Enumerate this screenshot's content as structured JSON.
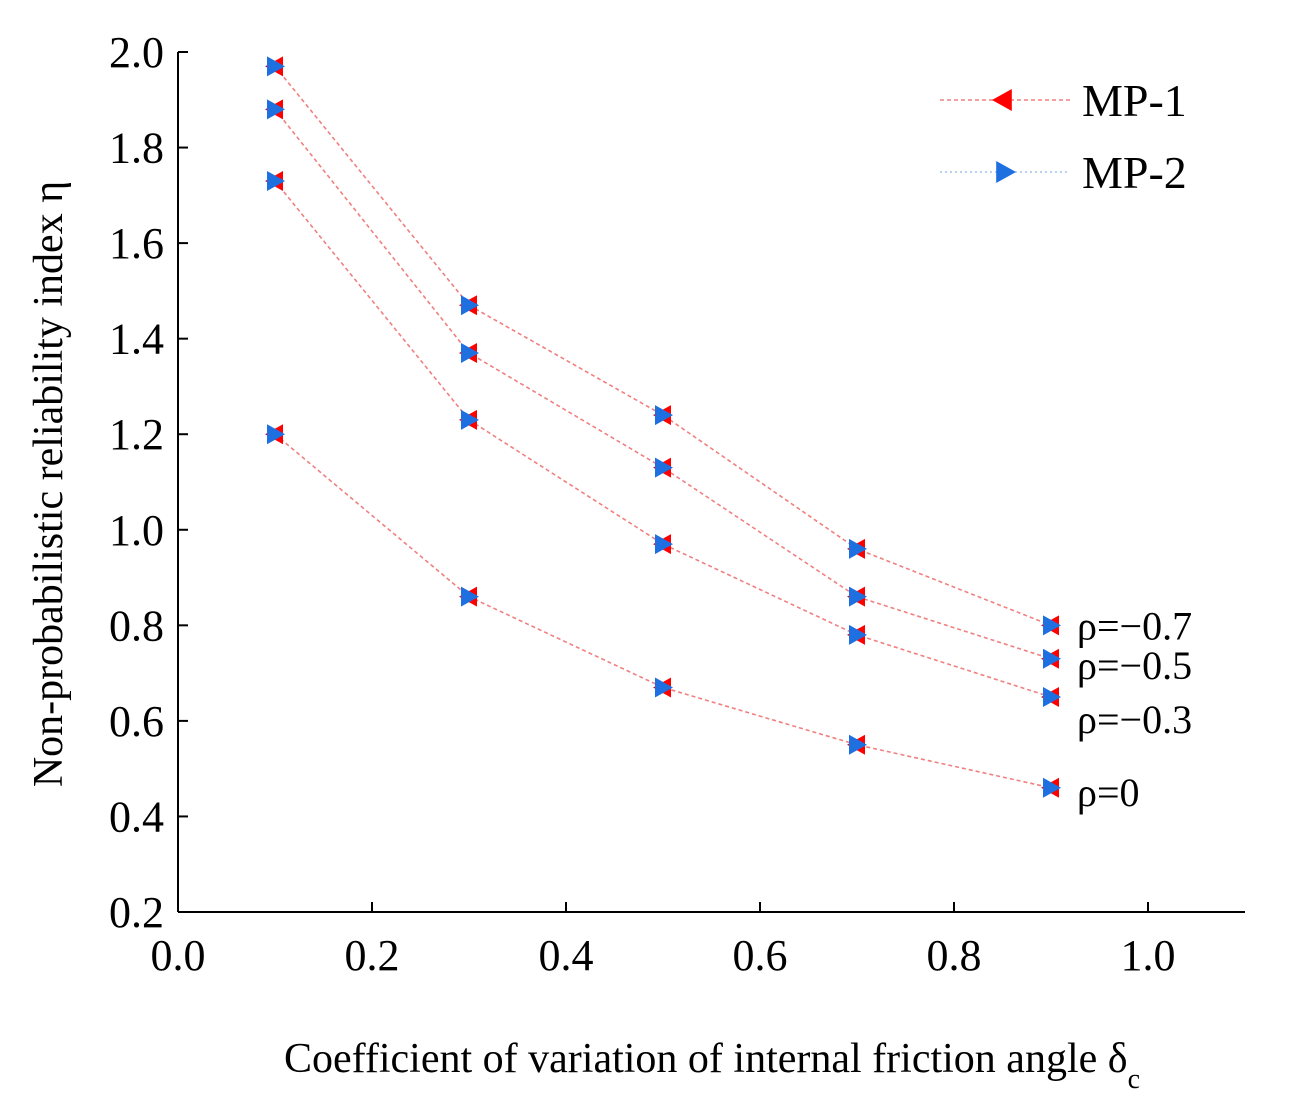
{
  "chart_data": {
    "type": "line",
    "title": "",
    "xlabel": "Coefficient of variation of internal friction angle δ",
    "xlabel_subscript": "c",
    "ylabel": "Non-probabilistic reliability index η",
    "xlim": [
      0.0,
      1.1
    ],
    "ylim": [
      0.2,
      2.0
    ],
    "xticks": [
      0.0,
      0.2,
      0.4,
      0.6,
      0.8,
      1.0
    ],
    "xtick_labels": [
      "0.0",
      "0.2",
      "0.4",
      "0.6",
      "0.8",
      "1.0"
    ],
    "yticks": [
      0.2,
      0.4,
      0.6,
      0.8,
      1.0,
      1.2,
      1.4,
      1.6,
      1.8,
      2.0
    ],
    "ytick_labels": [
      "0.2",
      "0.4",
      "0.6",
      "0.8",
      "1.0",
      "1.2",
      "1.4",
      "1.6",
      "1.8",
      "2.0"
    ],
    "grid": false,
    "legend_position": "top-right",
    "legend": [
      {
        "name": "MP-1",
        "marker": "triangle-left",
        "color": "#ff0000"
      },
      {
        "name": "MP-2",
        "marker": "triangle-right",
        "color": "#1e6fe0"
      }
    ],
    "x": [
      0.1,
      0.3,
      0.5,
      0.7,
      0.9
    ],
    "series": [
      {
        "name": "ρ=−0.7",
        "values": [
          1.97,
          1.47,
          1.24,
          0.96,
          0.8
        ]
      },
      {
        "name": "ρ=−0.5",
        "values": [
          1.88,
          1.37,
          1.13,
          0.86,
          0.73
        ]
      },
      {
        "name": "ρ=−0.3",
        "values": [
          1.73,
          1.23,
          0.97,
          0.78,
          0.65
        ]
      },
      {
        "name": "ρ=0",
        "values": [
          1.2,
          0.86,
          0.67,
          0.55,
          0.46
        ]
      }
    ],
    "annotations": [
      "ρ=−0.7",
      "ρ=−0.5",
      "ρ=−0.3",
      "ρ=0"
    ]
  },
  "colors": {
    "mp1": "#ff0000",
    "mp2": "#1e6fe0",
    "line": "#f08080"
  }
}
